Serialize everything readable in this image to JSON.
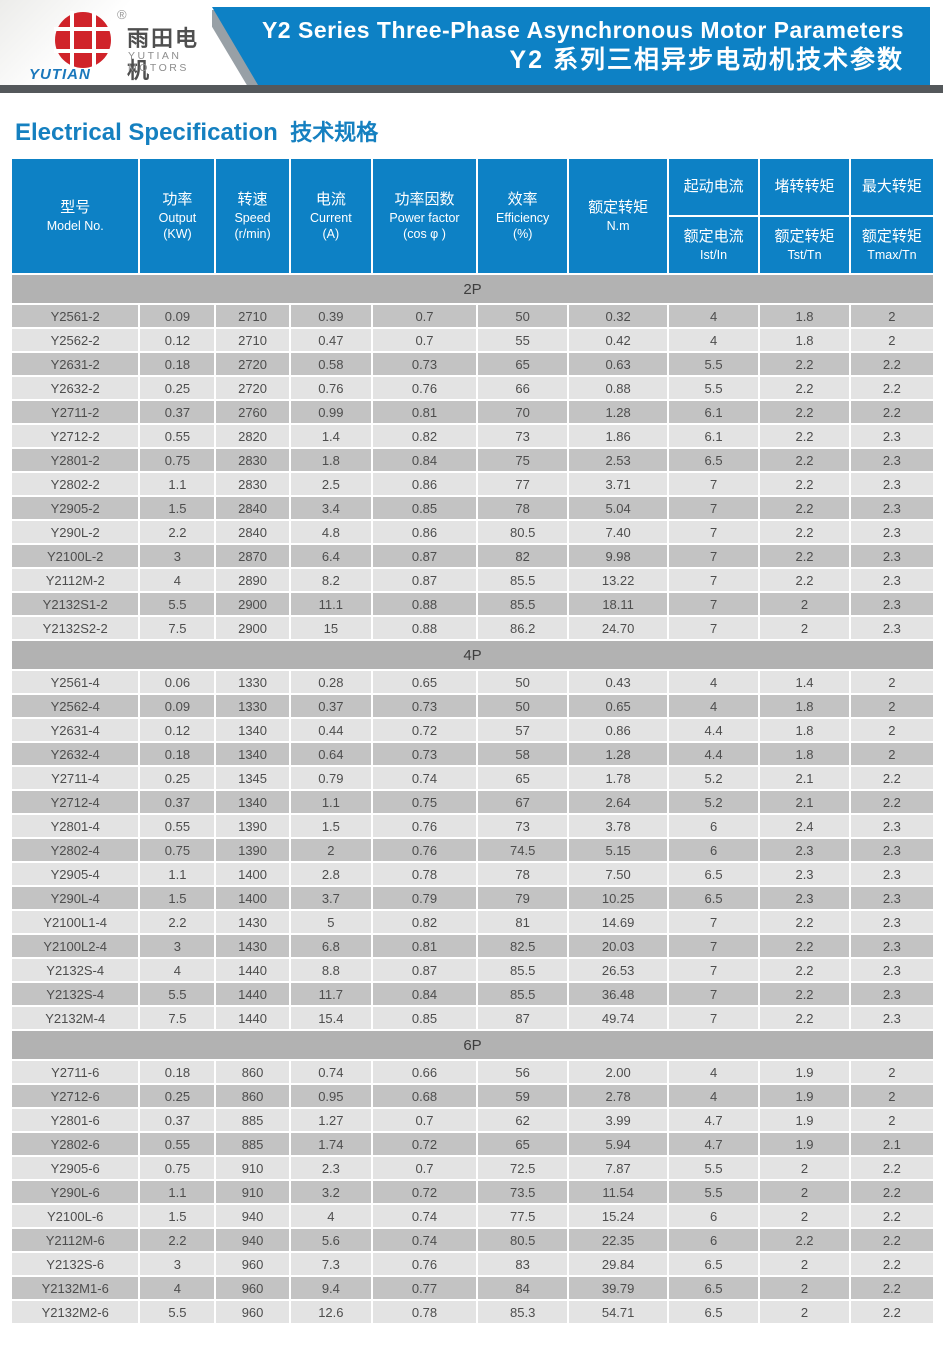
{
  "header": {
    "logo": {
      "cn": "雨田电机",
      "en": "YUTIAN MOTORS",
      "brand": "YUTIAN",
      "registered": "®"
    },
    "title_en": "Y2 Series Three-Phase Asynchronous Motor Parameters",
    "title_zh": "Y2 系列三相异步电动机技术参数",
    "banner_color": "#0d81c5",
    "strip_color": "#54585b",
    "logo_red": "#d0232a"
  },
  "section_title": {
    "en": "Electrical Specification",
    "zh": "技术规格",
    "color": "#1580c0"
  },
  "table": {
    "colors": {
      "header_bg": "#0d81c5",
      "band_bg": "#b2b2b2",
      "row_dark": "#c3c3c3",
      "row_light": "#e3e3e3",
      "text": "#4d4d4d"
    },
    "header": {
      "model": {
        "zh": "型号",
        "en": "Model No."
      },
      "output": {
        "zh": "功率",
        "en": "Output",
        "unit": "(KW)"
      },
      "speed": {
        "zh": "转速",
        "en": "Speed",
        "unit": "(r/min)"
      },
      "current": {
        "zh": "电流",
        "en": "Current",
        "unit": "(A)"
      },
      "power_factor": {
        "zh": "功率因数",
        "en": "Power factor",
        "unit": "(cos φ )"
      },
      "efficiency": {
        "zh": "效率",
        "en": "Efficiency",
        "unit": "(%)"
      },
      "torque": {
        "zh": "额定转矩",
        "en": "N.m"
      },
      "starting_current": {
        "top": "起动电流",
        "bottom_zh": "额定电流",
        "bottom_en": "Ist/In"
      },
      "locked_rotor_torque": {
        "top": "堵转转矩",
        "bottom_zh": "额定转矩",
        "bottom_en": "Tst/Tn"
      },
      "max_torque": {
        "top": "最大转矩",
        "bottom_zh": "额定转矩",
        "bottom_en": "Tmax/Tn"
      }
    },
    "sections": [
      {
        "label": "2P",
        "rows": [
          [
            "Y2561-2",
            "0.09",
            "2710",
            "0.39",
            "0.7",
            "50",
            "0.32",
            "4",
            "1.8",
            "2"
          ],
          [
            "Y2562-2",
            "0.12",
            "2710",
            "0.47",
            "0.7",
            "55",
            "0.42",
            "4",
            "1.8",
            "2"
          ],
          [
            "Y2631-2",
            "0.18",
            "2720",
            "0.58",
            "0.73",
            "65",
            "0.63",
            "5.5",
            "2.2",
            "2.2"
          ],
          [
            "Y2632-2",
            "0.25",
            "2720",
            "0.76",
            "0.76",
            "66",
            "0.88",
            "5.5",
            "2.2",
            "2.2"
          ],
          [
            "Y2711-2",
            "0.37",
            "2760",
            "0.99",
            "0.81",
            "70",
            "1.28",
            "6.1",
            "2.2",
            "2.2"
          ],
          [
            "Y2712-2",
            "0.55",
            "2820",
            "1.4",
            "0.82",
            "73",
            "1.86",
            "6.1",
            "2.2",
            "2.3"
          ],
          [
            "Y2801-2",
            "0.75",
            "2830",
            "1.8",
            "0.84",
            "75",
            "2.53",
            "6.5",
            "2.2",
            "2.3"
          ],
          [
            "Y2802-2",
            "1.1",
            "2830",
            "2.5",
            "0.86",
            "77",
            "3.71",
            "7",
            "2.2",
            "2.3"
          ],
          [
            "Y2905-2",
            "1.5",
            "2840",
            "3.4",
            "0.85",
            "78",
            "5.04",
            "7",
            "2.2",
            "2.3"
          ],
          [
            "Y290L-2",
            "2.2",
            "2840",
            "4.8",
            "0.86",
            "80.5",
            "7.40",
            "7",
            "2.2",
            "2.3"
          ],
          [
            "Y2100L-2",
            "3",
            "2870",
            "6.4",
            "0.87",
            "82",
            "9.98",
            "7",
            "2.2",
            "2.3"
          ],
          [
            "Y2112M-2",
            "4",
            "2890",
            "8.2",
            "0.87",
            "85.5",
            "13.22",
            "7",
            "2.2",
            "2.3"
          ],
          [
            "Y2132S1-2",
            "5.5",
            "2900",
            "11.1",
            "0.88",
            "85.5",
            "18.11",
            "7",
            "2",
            "2.3"
          ],
          [
            "Y2132S2-2",
            "7.5",
            "2900",
            "15",
            "0.88",
            "86.2",
            "24.70",
            "7",
            "2",
            "2.3"
          ]
        ]
      },
      {
        "label": "4P",
        "rows": [
          [
            "Y2561-4",
            "0.06",
            "1330",
            "0.28",
            "0.65",
            "50",
            "0.43",
            "4",
            "1.4",
            "2"
          ],
          [
            "Y2562-4",
            "0.09",
            "1330",
            "0.37",
            "0.73",
            "50",
            "0.65",
            "4",
            "1.8",
            "2"
          ],
          [
            "Y2631-4",
            "0.12",
            "1340",
            "0.44",
            "0.72",
            "57",
            "0.86",
            "4.4",
            "1.8",
            "2"
          ],
          [
            "Y2632-4",
            "0.18",
            "1340",
            "0.64",
            "0.73",
            "58",
            "1.28",
            "4.4",
            "1.8",
            "2"
          ],
          [
            "Y2711-4",
            "0.25",
            "1345",
            "0.79",
            "0.74",
            "65",
            "1.78",
            "5.2",
            "2.1",
            "2.2"
          ],
          [
            "Y2712-4",
            "0.37",
            "1340",
            "1.1",
            "0.75",
            "67",
            "2.64",
            "5.2",
            "2.1",
            "2.2"
          ],
          [
            "Y2801-4",
            "0.55",
            "1390",
            "1.5",
            "0.76",
            "73",
            "3.78",
            "6",
            "2.4",
            "2.3"
          ],
          [
            "Y2802-4",
            "0.75",
            "1390",
            "2",
            "0.76",
            "74.5",
            "5.15",
            "6",
            "2.3",
            "2.3"
          ],
          [
            "Y2905-4",
            "1.1",
            "1400",
            "2.8",
            "0.78",
            "78",
            "7.50",
            "6.5",
            "2.3",
            "2.3"
          ],
          [
            "Y290L-4",
            "1.5",
            "1400",
            "3.7",
            "0.79",
            "79",
            "10.25",
            "6.5",
            "2.3",
            "2.3"
          ],
          [
            "Y2100L1-4",
            "2.2",
            "1430",
            "5",
            "0.82",
            "81",
            "14.69",
            "7",
            "2.2",
            "2.3"
          ],
          [
            "Y2100L2-4",
            "3",
            "1430",
            "6.8",
            "0.81",
            "82.5",
            "20.03",
            "7",
            "2.2",
            "2.3"
          ],
          [
            "Y2132S-4",
            "4",
            "1440",
            "8.8",
            "0.87",
            "85.5",
            "26.53",
            "7",
            "2.2",
            "2.3"
          ],
          [
            "Y2132S-4",
            "5.5",
            "1440",
            "11.7",
            "0.84",
            "85.5",
            "36.48",
            "7",
            "2.2",
            "2.3"
          ],
          [
            "Y2132M-4",
            "7.5",
            "1440",
            "15.4",
            "0.85",
            "87",
            "49.74",
            "7",
            "2.2",
            "2.3"
          ]
        ]
      },
      {
        "label": "6P",
        "rows": [
          [
            "Y2711-6",
            "0.18",
            "860",
            "0.74",
            "0.66",
            "56",
            "2.00",
            "4",
            "1.9",
            "2"
          ],
          [
            "Y2712-6",
            "0.25",
            "860",
            "0.95",
            "0.68",
            "59",
            "2.78",
            "4",
            "1.9",
            "2"
          ],
          [
            "Y2801-6",
            "0.37",
            "885",
            "1.27",
            "0.7",
            "62",
            "3.99",
            "4.7",
            "1.9",
            "2"
          ],
          [
            "Y2802-6",
            "0.55",
            "885",
            "1.74",
            "0.72",
            "65",
            "5.94",
            "4.7",
            "1.9",
            "2.1"
          ],
          [
            "Y2905-6",
            "0.75",
            "910",
            "2.3",
            "0.7",
            "72.5",
            "7.87",
            "5.5",
            "2",
            "2.2"
          ],
          [
            "Y290L-6",
            "1.1",
            "910",
            "3.2",
            "0.72",
            "73.5",
            "11.54",
            "5.5",
            "2",
            "2.2"
          ],
          [
            "Y2100L-6",
            "1.5",
            "940",
            "4",
            "0.74",
            "77.5",
            "15.24",
            "6",
            "2",
            "2.2"
          ],
          [
            "Y2112M-6",
            "2.2",
            "940",
            "5.6",
            "0.74",
            "80.5",
            "22.35",
            "6",
            "2.2",
            "2.2"
          ],
          [
            "Y2132S-6",
            "3",
            "960",
            "7.3",
            "0.76",
            "83",
            "29.84",
            "6.5",
            "2",
            "2.2"
          ],
          [
            "Y2132M1-6",
            "4",
            "960",
            "9.4",
            "0.77",
            "84",
            "39.79",
            "6.5",
            "2",
            "2.2"
          ],
          [
            "Y2132M2-6",
            "5.5",
            "960",
            "12.6",
            "0.78",
            "85.3",
            "54.71",
            "6.5",
            "2",
            "2.2"
          ]
        ]
      }
    ]
  }
}
